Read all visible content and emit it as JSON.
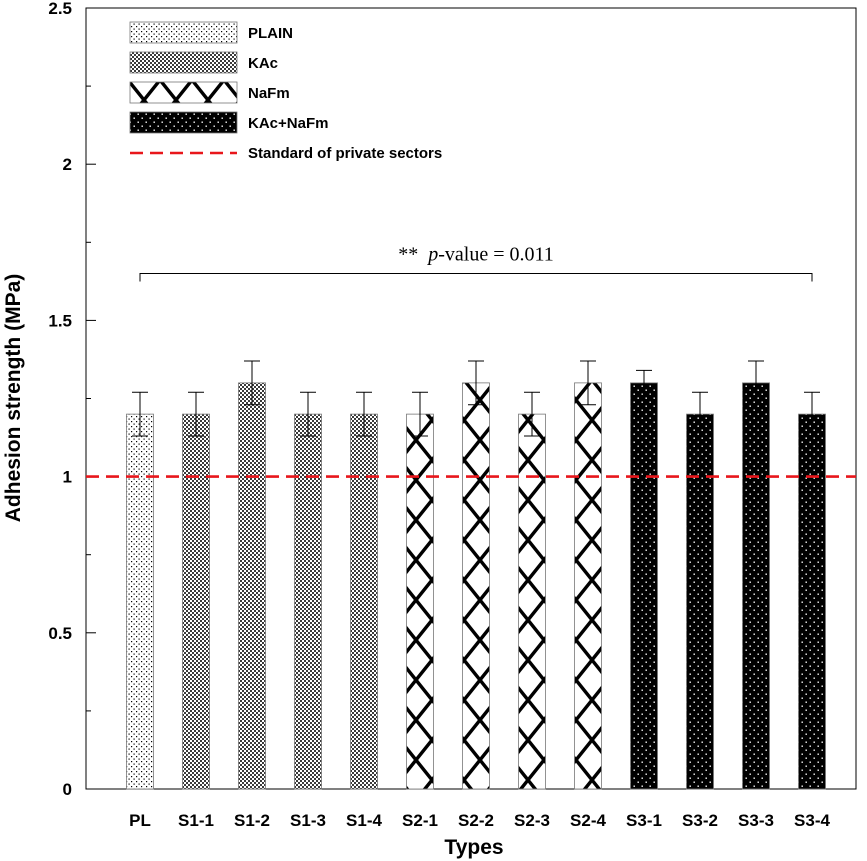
{
  "chart_data": {
    "type": "bar",
    "title": "",
    "xlabel": "Types",
    "ylabel": "Adhesion strength (MPa)",
    "ylim": [
      0,
      2.5
    ],
    "yticks": [
      "0",
      "0.5",
      "1",
      "1.5",
      "2",
      "2.5"
    ],
    "yticks_values": [
      0,
      0.5,
      1,
      1.5,
      2,
      2.5
    ],
    "categories": [
      "PL",
      "S1-1",
      "S1-2",
      "S1-3",
      "S1-4",
      "S2-1",
      "S2-2",
      "S2-3",
      "S2-4",
      "S3-1",
      "S3-2",
      "S3-3",
      "S3-4"
    ],
    "values": [
      1.2,
      1.2,
      1.3,
      1.2,
      1.2,
      1.2,
      1.3,
      1.2,
      1.3,
      1.3,
      1.2,
      1.3,
      1.2
    ],
    "errors": [
      0.07,
      0.07,
      0.07,
      0.07,
      0.07,
      0.07,
      0.07,
      0.07,
      0.07,
      0.04,
      0.07,
      0.07,
      0.07
    ],
    "groups": [
      "PLAIN",
      "KAc",
      "KAc",
      "KAc",
      "KAc",
      "NaFm",
      "NaFm",
      "NaFm",
      "NaFm",
      "KAc+NaFm",
      "KAc+NaFm",
      "KAc+NaFm",
      "KAc+NaFm"
    ],
    "legend": [
      {
        "label": "PLAIN",
        "kind": "bar",
        "pattern": "plain"
      },
      {
        "label": "KAc",
        "kind": "bar",
        "pattern": "kac"
      },
      {
        "label": "NaFm",
        "kind": "bar",
        "pattern": "nafm"
      },
      {
        "label": "KAc+NaFm",
        "kind": "bar",
        "pattern": "mix"
      },
      {
        "label": "Standard of private sectors",
        "kind": "line"
      }
    ],
    "legend_position": "top-left",
    "reference_line": {
      "value": 1.0,
      "color": "#e8161b",
      "style": "dashed",
      "label": "Standard of private sectors"
    },
    "annotation": {
      "stars": "**",
      "p_label": "p",
      "text": "-value = 0.011",
      "from": "PL",
      "to": "S3-4",
      "level": 1.65
    },
    "grid": false
  }
}
